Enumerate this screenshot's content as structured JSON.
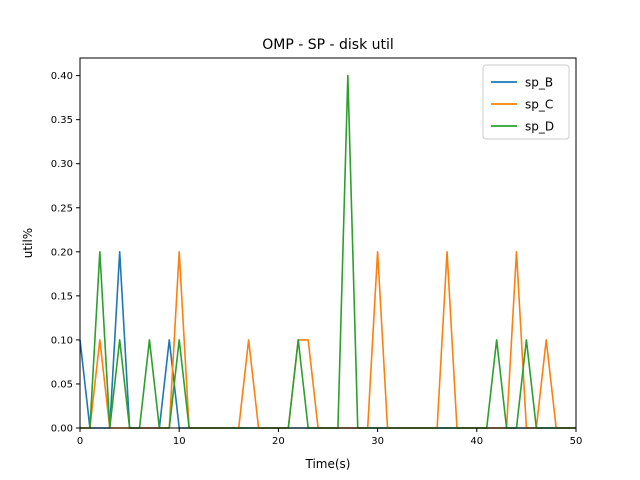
{
  "chart_data": {
    "type": "line",
    "title": "OMP - SP - disk util",
    "xlabel": "Time(s)",
    "ylabel": "util%",
    "xlim": [
      0,
      50
    ],
    "ylim": [
      0,
      0.42
    ],
    "xticks": [
      0,
      10,
      20,
      30,
      40,
      50
    ],
    "yticks": [
      0.0,
      0.05,
      0.1,
      0.15,
      0.2,
      0.25,
      0.3,
      0.35,
      0.4
    ],
    "ytick_labels": [
      "0.00",
      "0.05",
      "0.10",
      "0.15",
      "0.20",
      "0.25",
      "0.30",
      "0.35",
      "0.40"
    ],
    "grid": false,
    "legend_position": "top-right",
    "series": [
      {
        "name": "sp_B",
        "color": "#1f77b4",
        "x": [
          0,
          1,
          2,
          3,
          4,
          5,
          6,
          7,
          8,
          9,
          10,
          11,
          12,
          13,
          14,
          15,
          16,
          17,
          18,
          19,
          20,
          21,
          22,
          23,
          24,
          25,
          26,
          27,
          28,
          29,
          30,
          31,
          32,
          33,
          34,
          35,
          36,
          37,
          38,
          39,
          40,
          41,
          42,
          43,
          44,
          45,
          46,
          47,
          48,
          49,
          50
        ],
        "y": [
          0.1,
          0,
          0,
          0,
          0.2,
          0,
          0,
          0,
          0,
          0.1,
          0,
          0,
          0,
          0,
          0,
          0,
          0,
          0,
          0,
          0,
          0,
          0,
          0,
          0,
          0,
          0,
          0,
          0,
          0,
          0,
          0,
          0,
          0,
          0,
          0,
          0,
          0,
          0,
          0,
          0,
          0,
          0,
          0,
          0,
          0,
          0,
          0,
          0,
          0,
          0,
          0
        ]
      },
      {
        "name": "sp_C",
        "color": "#ff7f0e",
        "x": [
          0,
          1,
          2,
          3,
          4,
          5,
          6,
          7,
          8,
          9,
          10,
          11,
          12,
          13,
          14,
          15,
          16,
          17,
          18,
          19,
          20,
          21,
          22,
          23,
          24,
          25,
          26,
          27,
          28,
          29,
          30,
          31,
          32,
          33,
          34,
          35,
          36,
          37,
          38,
          39,
          40,
          41,
          42,
          43,
          44,
          45,
          46,
          47,
          48,
          49,
          50
        ],
        "y": [
          0,
          0,
          0.1,
          0,
          0,
          0,
          0,
          0,
          0,
          0,
          0.2,
          0,
          0,
          0,
          0,
          0,
          0,
          0.1,
          0,
          0,
          0,
          0,
          0.1,
          0.1,
          0,
          0,
          0,
          0,
          0,
          0,
          0.2,
          0,
          0,
          0,
          0,
          0,
          0,
          0.2,
          0,
          0,
          0,
          0,
          0,
          0,
          0.2,
          0,
          0,
          0.1,
          0,
          0,
          0
        ]
      },
      {
        "name": "sp_D",
        "color": "#2ca02c",
        "x": [
          0,
          1,
          2,
          3,
          4,
          5,
          6,
          7,
          8,
          9,
          10,
          11,
          12,
          13,
          14,
          15,
          16,
          17,
          18,
          19,
          20,
          21,
          22,
          23,
          24,
          25,
          26,
          27,
          28,
          29,
          30,
          31,
          32,
          33,
          34,
          35,
          36,
          37,
          38,
          39,
          40,
          41,
          42,
          43,
          44,
          45,
          46,
          47,
          48,
          49,
          50
        ],
        "y": [
          0,
          0,
          0.2,
          0,
          0.1,
          0,
          0,
          0.1,
          0,
          0,
          0.1,
          0,
          0,
          0,
          0,
          0,
          0,
          0,
          0,
          0,
          0,
          0,
          0.1,
          0,
          0,
          0,
          0,
          0.4,
          0,
          0,
          0,
          0,
          0,
          0,
          0,
          0,
          0,
          0,
          0,
          0,
          0,
          0,
          0.1,
          0,
          0,
          0.1,
          0,
          0,
          0,
          0,
          0
        ]
      }
    ]
  }
}
